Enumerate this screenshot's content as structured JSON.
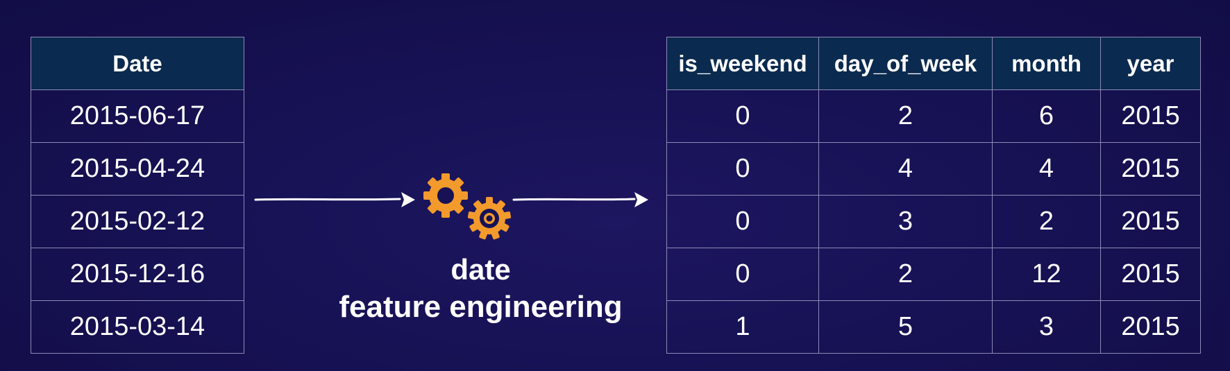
{
  "date_table": {
    "header": "Date",
    "rows": [
      "2015-06-17",
      "2015-04-24",
      "2015-02-12",
      "2015-12-16",
      "2015-03-14"
    ]
  },
  "process": {
    "icon": "gears-icon",
    "title_line1": "date",
    "title_line2": "feature engineering"
  },
  "features_table": {
    "headers": [
      "is_weekend",
      "day_of_week",
      "month",
      "year"
    ],
    "rows": [
      [
        "0",
        "2",
        "6",
        "2015"
      ],
      [
        "0",
        "4",
        "4",
        "2015"
      ],
      [
        "0",
        "3",
        "2",
        "2015"
      ],
      [
        "0",
        "2",
        "12",
        "2015"
      ],
      [
        "1",
        "5",
        "3",
        "2015"
      ]
    ]
  },
  "colors": {
    "background": "#171255",
    "header_fill": "#0b2a4f",
    "gear": "#f39a2c",
    "grid_line": "#8e8ab6"
  }
}
